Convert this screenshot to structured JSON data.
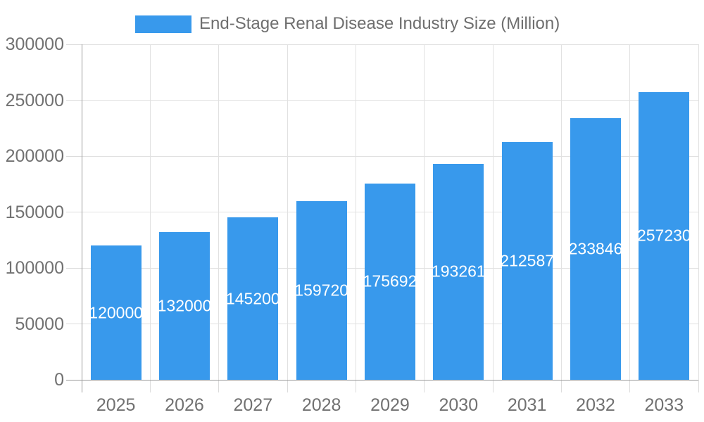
{
  "colors": {
    "bar": "#3899EC",
    "grid": "#E1E1E1",
    "tick": "#DCDCDC",
    "axis": "#9A9A9A",
    "axis_text": "#717171",
    "legend_text": "#6E6E6E",
    "bar_label": "#FFFFFF",
    "background": "#FFFFFF"
  },
  "legend": {
    "position": "top",
    "items": [
      {
        "label": "End-Stage Renal Disease Industry Size (Million)",
        "color": "#3899EC"
      }
    ]
  },
  "chart_data": {
    "type": "bar",
    "title": "End-Stage Renal Disease Industry Size (Million)",
    "categories": [
      "2025",
      "2026",
      "2027",
      "2028",
      "2029",
      "2030",
      "2031",
      "2032",
      "2033"
    ],
    "values": [
      120000,
      132000,
      145200,
      159720,
      175692,
      193261,
      212587,
      233846,
      257230
    ],
    "value_labels": [
      "120000",
      "132000",
      "145200",
      "159720",
      "175692",
      "193261",
      "212587",
      "233846",
      "257230"
    ],
    "value_labels_position": "inside-center",
    "y_ticks": [
      0,
      50000,
      100000,
      150000,
      200000,
      250000,
      300000
    ],
    "y_tick_labels": [
      "0",
      "50000",
      "100000",
      "150000",
      "200000",
      "250000",
      "300000"
    ],
    "ylim": [
      0,
      300000
    ],
    "xlabel": "",
    "ylabel": "",
    "grid": true,
    "legend_position": "top-center"
  }
}
